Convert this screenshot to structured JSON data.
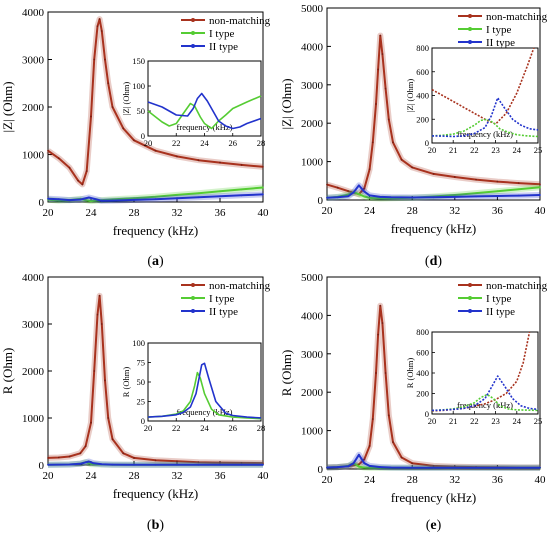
{
  "colors": {
    "non_matching": "#a8321e",
    "type_I": "#55cc33",
    "type_II": "#2233cc",
    "marker": "#7a1e12"
  },
  "chart_data": [
    {
      "id": "a",
      "type": "line",
      "panel_label": "a",
      "xlabel": "frequency (kHz)",
      "ylabel": "|Z| (Ohm)",
      "xlim": [
        20,
        40
      ],
      "ylim": [
        0,
        4000
      ],
      "xticks": [
        20,
        24,
        28,
        32,
        36,
        40
      ],
      "yticks": [
        0,
        1000,
        2000,
        3000,
        4000
      ],
      "legend": [
        "non-matching",
        "I type",
        "II type"
      ],
      "legend_position": "top-right",
      "series": [
        {
          "name": "non-matching",
          "x": [
            20,
            21,
            22,
            22.8,
            23.2,
            23.6,
            24,
            24.3,
            24.6,
            24.8,
            25,
            25.3,
            25.6,
            26,
            27,
            28,
            30,
            32,
            34,
            36,
            38,
            40
          ],
          "y": [
            1080,
            920,
            720,
            450,
            370,
            650,
            1800,
            3000,
            3700,
            3850,
            3600,
            3000,
            2500,
            2000,
            1550,
            1300,
            1080,
            960,
            880,
            830,
            780,
            740
          ]
        },
        {
          "name": "I type",
          "x": [
            20,
            21,
            22,
            23,
            23.5,
            24,
            25,
            26,
            28,
            30,
            32,
            34,
            36,
            38,
            40
          ],
          "y": [
            50,
            30,
            40,
            65,
            40,
            20,
            40,
            55,
            80,
            110,
            150,
            185,
            225,
            265,
            305
          ]
        },
        {
          "name": "II type",
          "x": [
            20,
            21,
            22,
            23,
            23.8,
            24.5,
            25,
            26,
            28,
            30,
            32,
            34,
            36,
            38,
            40
          ],
          "y": [
            70,
            60,
            40,
            50,
            95,
            55,
            25,
            30,
            45,
            60,
            80,
            100,
            120,
            140,
            160
          ]
        }
      ],
      "inset": {
        "xlabel": "frequency (kHz)",
        "ylabel": "|Z| (Ohm)",
        "xlim": [
          20,
          28
        ],
        "ylim": [
          0,
          150
        ],
        "xticks": [
          20,
          22,
          24,
          26,
          28
        ],
        "yticks": [
          0,
          50,
          100,
          150
        ],
        "series": [
          {
            "name": "I type",
            "x": [
              20,
              21,
              21.5,
              22,
              22.5,
              23,
              23.3,
              23.7,
              24,
              24.5,
              25,
              25.5,
              26,
              27,
              28
            ],
            "y": [
              50,
              28,
              20,
              25,
              45,
              65,
              60,
              38,
              25,
              15,
              30,
              42,
              55,
              68,
              80
            ]
          },
          {
            "name": "II type",
            "x": [
              20,
              21,
              22,
              22.8,
              23.2,
              23.5,
              23.8,
              24.2,
              24.8,
              25,
              25.5,
              26,
              26.5,
              27,
              28
            ],
            "y": [
              68,
              58,
              42,
              40,
              55,
              75,
              85,
              70,
              40,
              30,
              20,
              15,
              18,
              25,
              35
            ]
          }
        ]
      }
    },
    {
      "id": "d",
      "type": "line",
      "panel_label": "d",
      "xlabel": "frequency (kHz)",
      "ylabel": "|Z| (Ohm)",
      "xlim": [
        20,
        40
      ],
      "ylim": [
        0,
        5000
      ],
      "xticks": [
        20,
        24,
        28,
        32,
        36,
        40
      ],
      "yticks": [
        0,
        1000,
        2000,
        3000,
        4000,
        5000
      ],
      "legend": [
        "non-matching",
        "I type",
        "II type"
      ],
      "legend_position": "top-right",
      "series": [
        {
          "name": "non-matching",
          "x": [
            20,
            21,
            22,
            22.5,
            23,
            23.5,
            24,
            24.3,
            24.6,
            24.8,
            25,
            25.2,
            25.5,
            25.8,
            26.2,
            27,
            28,
            30,
            32,
            34,
            36,
            38,
            40
          ],
          "y": [
            400,
            320,
            230,
            190,
            150,
            300,
            800,
            1500,
            2500,
            3400,
            4280,
            3800,
            2900,
            2100,
            1500,
            1050,
            850,
            680,
            600,
            530,
            480,
            440,
            410
          ]
        },
        {
          "name": "I type",
          "x": [
            20,
            21,
            22,
            22.5,
            23,
            23.5,
            24,
            25,
            26,
            28,
            30,
            32,
            34,
            36,
            38,
            40
          ],
          "y": [
            60,
            80,
            140,
            200,
            150,
            90,
            55,
            40,
            45,
            60,
            90,
            130,
            180,
            230,
            280,
            330
          ]
        },
        {
          "name": "II type",
          "x": [
            20,
            21,
            22,
            22.5,
            23,
            23.5,
            24,
            25,
            26,
            28,
            30,
            32,
            34,
            36,
            38,
            40
          ],
          "y": [
            60,
            70,
            100,
            200,
            380,
            220,
            120,
            80,
            70,
            65,
            70,
            80,
            95,
            105,
            115,
            130
          ]
        }
      ],
      "inset": {
        "xlabel": "frequency (kHz)",
        "ylabel": "|Z| (Ohm)",
        "xlim": [
          20,
          25
        ],
        "ylim": [
          0,
          800
        ],
        "xticks": [
          20,
          21,
          22,
          23,
          24,
          25
        ],
        "yticks": [
          0,
          200,
          400,
          600,
          800
        ],
        "series": [
          {
            "name": "non-matching",
            "x": [
              20,
              20.5,
              21,
              21.5,
              22,
              22.5,
              23,
              23.5,
              24,
              24.5,
              24.8
            ],
            "y": [
              450,
              400,
              350,
              300,
              250,
              200,
              160,
              250,
              420,
              650,
              800
            ]
          },
          {
            "name": "I type",
            "x": [
              20,
              20.5,
              21,
              21.5,
              22,
              22.3,
              22.6,
              22.9,
              23.2,
              23.6,
              24,
              24.5,
              25
            ],
            "y": [
              60,
              65,
              75,
              100,
              150,
              190,
              200,
              170,
              120,
              90,
              70,
              60,
              55
            ]
          },
          {
            "name": "II type",
            "x": [
              20,
              20.5,
              21,
              21.5,
              22,
              22.5,
              22.8,
              23.1,
              23.4,
              23.8,
              24.2,
              24.6,
              25
            ],
            "y": [
              60,
              58,
              55,
              60,
              80,
              130,
              230,
              380,
              300,
              200,
              150,
              120,
              110
            ]
          }
        ]
      }
    },
    {
      "id": "b",
      "type": "line",
      "panel_label": "b",
      "xlabel": "frequency (kHz)",
      "ylabel": "R (Ohm)",
      "xlim": [
        20,
        40
      ],
      "ylim": [
        0,
        4000
      ],
      "xticks": [
        20,
        24,
        28,
        32,
        36,
        40
      ],
      "yticks": [
        0,
        1000,
        2000,
        3000,
        4000
      ],
      "legend": [
        "non-matching",
        "I type",
        "II type"
      ],
      "legend_position": "top-right",
      "series": [
        {
          "name": "non-matching",
          "x": [
            20,
            21,
            22,
            23,
            23.5,
            24,
            24.3,
            24.6,
            24.8,
            25,
            25.3,
            25.6,
            26,
            27,
            28,
            30,
            32,
            34,
            36,
            38,
            40
          ],
          "y": [
            150,
            160,
            180,
            250,
            400,
            900,
            2000,
            3200,
            3600,
            3000,
            1800,
            1000,
            550,
            250,
            150,
            100,
            80,
            60,
            50,
            45,
            40
          ]
        },
        {
          "name": "I type",
          "x": [
            20,
            22,
            23,
            23.5,
            24,
            25,
            26,
            28,
            30,
            32,
            34,
            36,
            38,
            40
          ],
          "y": [
            5,
            10,
            30,
            60,
            20,
            10,
            5,
            5,
            5,
            5,
            5,
            5,
            5,
            5
          ]
        },
        {
          "name": "II type",
          "x": [
            20,
            22,
            23,
            23.5,
            23.8,
            24.2,
            25,
            26,
            28,
            30,
            32,
            34,
            36,
            38,
            40
          ],
          "y": [
            5,
            10,
            25,
            55,
            75,
            40,
            15,
            8,
            5,
            5,
            5,
            5,
            5,
            5,
            5
          ]
        }
      ],
      "inset": {
        "xlabel": "frequency (kHz)",
        "ylabel": "R (Ohm)",
        "xlim": [
          20,
          28
        ],
        "ylim": [
          0,
          100
        ],
        "xticks": [
          20,
          22,
          24,
          26,
          28
        ],
        "yticks": [
          0,
          25,
          50,
          75,
          100
        ],
        "series": [
          {
            "name": "I type",
            "x": [
              20,
              21,
              22,
              22.5,
              23,
              23.3,
              23.5,
              23.7,
              24,
              24.5,
              25,
              26,
              27,
              28
            ],
            "y": [
              5,
              6,
              9,
              13,
              25,
              45,
              62,
              55,
              35,
              15,
              8,
              5,
              4,
              3
            ]
          },
          {
            "name": "II type",
            "x": [
              20,
              21,
              22,
              22.5,
              23,
              23.4,
              23.8,
              24,
              24.3,
              24.8,
              25.5,
              26,
              27,
              28
            ],
            "y": [
              5,
              6,
              8,
              11,
              18,
              35,
              72,
              74,
              55,
              25,
              10,
              7,
              5,
              4
            ]
          }
        ]
      }
    },
    {
      "id": "e",
      "type": "line",
      "panel_label": "e",
      "xlabel": "frequency (kHz)",
      "ylabel": "R (Ohm)",
      "xlim": [
        20,
        40
      ],
      "ylim": [
        0,
        5000
      ],
      "xticks": [
        20,
        24,
        28,
        32,
        36,
        40
      ],
      "yticks": [
        0,
        1000,
        2000,
        3000,
        4000,
        5000
      ],
      "legend": [
        "non-matching",
        "I type",
        "II type"
      ],
      "legend_position": "top-right",
      "series": [
        {
          "name": "non-matching",
          "x": [
            20,
            21,
            22,
            23,
            23.5,
            24,
            24.3,
            24.6,
            24.8,
            25,
            25.2,
            25.5,
            25.8,
            26.2,
            27,
            28,
            30,
            32,
            34,
            36,
            38,
            40
          ],
          "y": [
            40,
            50,
            70,
            120,
            250,
            600,
            1300,
            2500,
            3500,
            4250,
            3800,
            2500,
            1400,
            700,
            300,
            150,
            80,
            60,
            50,
            45,
            40,
            40
          ]
        },
        {
          "name": "I type",
          "x": [
            20,
            21,
            22,
            22.5,
            23,
            23.5,
            24,
            25,
            26,
            28,
            30,
            32,
            34,
            36,
            38,
            40
          ],
          "y": [
            40,
            50,
            80,
            150,
            60,
            40,
            35,
            30,
            30,
            30,
            30,
            30,
            30,
            30,
            30,
            30
          ]
        },
        {
          "name": "II type",
          "x": [
            20,
            21,
            22,
            22.5,
            23,
            23.5,
            24,
            25,
            26,
            28,
            30,
            32,
            34,
            36,
            38,
            40
          ],
          "y": [
            40,
            50,
            70,
            150,
            370,
            150,
            80,
            50,
            40,
            35,
            35,
            35,
            35,
            35,
            35,
            35
          ]
        }
      ],
      "inset": {
        "xlabel": "frequency (kHz)",
        "ylabel": "R (Ohm)",
        "xlim": [
          20,
          25
        ],
        "ylim": [
          0,
          800
        ],
        "xticks": [
          20,
          21,
          22,
          23,
          24,
          25
        ],
        "yticks": [
          0,
          200,
          400,
          600,
          800
        ],
        "series": [
          {
            "name": "non-matching",
            "x": [
              20,
              20.5,
              21,
              21.5,
              22,
              22.5,
              23,
              23.5,
              24,
              24.3,
              24.6
            ],
            "y": [
              30,
              35,
              45,
              55,
              75,
              100,
              140,
              200,
              320,
              500,
              800
            ]
          },
          {
            "name": "I type",
            "x": [
              20,
              20.5,
              21,
              21.5,
              22,
              22.3,
              22.6,
              22.9,
              23.2,
              23.6,
              24,
              24.5,
              25
            ],
            "y": [
              35,
              40,
              50,
              70,
              110,
              160,
              190,
              150,
              80,
              50,
              40,
              38,
              35
            ]
          },
          {
            "name": "II type",
            "x": [
              20,
              20.5,
              21,
              21.5,
              22,
              22.5,
              22.8,
              23.1,
              23.4,
              23.8,
              24.2,
              24.6,
              25
            ],
            "y": [
              35,
              38,
              45,
              55,
              80,
              150,
              260,
              370,
              280,
              150,
              80,
              55,
              45
            ]
          }
        ]
      }
    }
  ]
}
